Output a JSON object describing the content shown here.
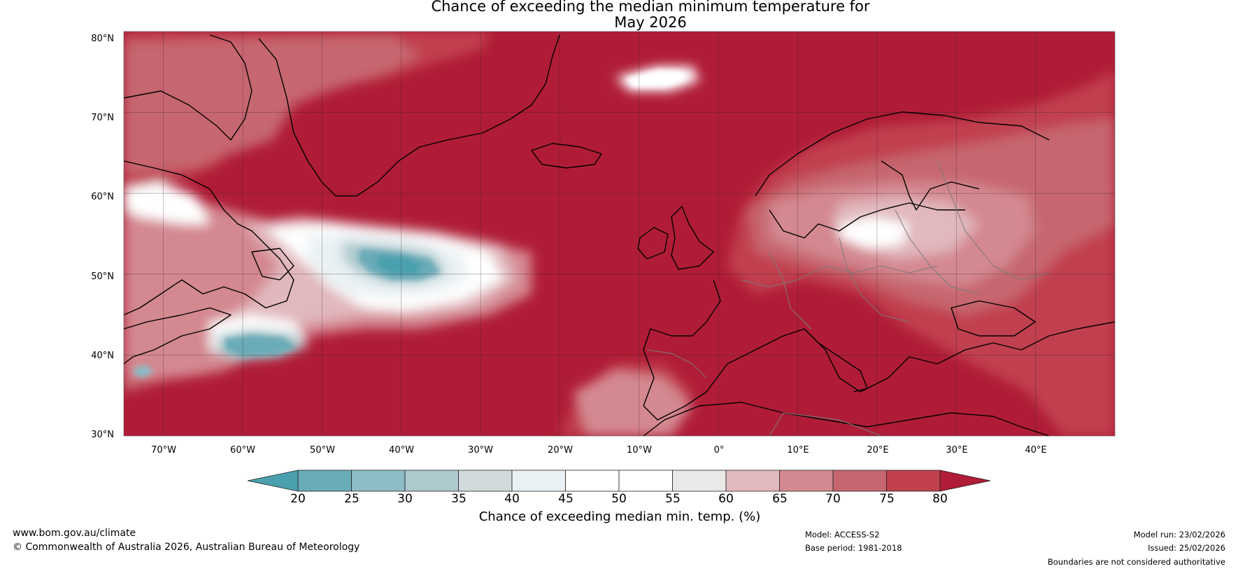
{
  "title": "Chance of exceeding the median minimum temperature for\nMay 2026",
  "map": {
    "lat_labels": [
      "80°N",
      "70°N",
      "60°N",
      "50°N",
      "40°N",
      "30°N"
    ],
    "lon_labels": [
      "70°W",
      "60°W",
      "50°W",
      "40°W",
      "30°W",
      "20°W",
      "10°W",
      "0°",
      "10°E",
      "20°E",
      "30°E",
      "40°E"
    ],
    "lat_range": [
      30,
      80
    ],
    "lon_range": [
      -75,
      50
    ]
  },
  "colorbar": {
    "title": "Chance of exceeding median min. temp. (%)",
    "ticks": [
      "20",
      "25",
      "30",
      "35",
      "40",
      "45",
      "50",
      "55",
      "60",
      "65",
      "70",
      "75",
      "80"
    ],
    "colors": [
      "#4aa0ae",
      "#6aabb8",
      "#8cbcc6",
      "#adc9cd",
      "#d1dadb",
      "#eaf1f4",
      "#ffffff",
      "#ffffff",
      "#ebe9e7",
      "#e1b8bd",
      "#d48890",
      "#c66670",
      "#c1404f",
      "#b01c37"
    ]
  },
  "footer": {
    "website": "www.bom.gov.au/climate",
    "copyright": "© Commonwealth of Australia 2026, Australian Bureau of Meteorology",
    "model": "Model: ACCESS-S2",
    "base_period": "Base period: 1981-2018",
    "model_run": "Model run: 23/02/2026",
    "issued": "Issued: 25/02/2026",
    "disclaimer": "Boundaries are not considered authoritative"
  }
}
